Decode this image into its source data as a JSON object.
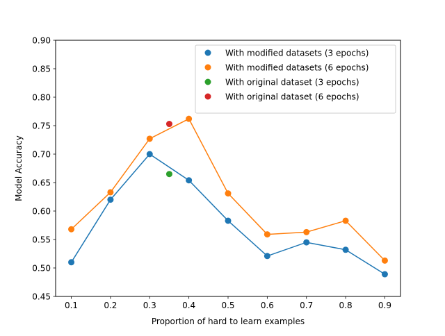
{
  "chart_data": {
    "type": "scatter",
    "title": "",
    "xlabel": "Proportion of hard to learn examples",
    "ylabel": "Model Accuracy",
    "xlim": [
      0.06,
      0.94
    ],
    "ylim": [
      0.45,
      0.9
    ],
    "xticks": [
      0.1,
      0.2,
      0.3,
      0.4,
      0.5,
      0.6,
      0.7,
      0.8,
      0.9
    ],
    "xtick_labels": [
      "0.1",
      "0.2",
      "0.3",
      "0.4",
      "0.5",
      "0.6",
      "0.7",
      "0.8",
      "0.9"
    ],
    "yticks": [
      0.45,
      0.5,
      0.55,
      0.6,
      0.65,
      0.7,
      0.75,
      0.8,
      0.85,
      0.9
    ],
    "ytick_labels": [
      "0.45",
      "0.50",
      "0.55",
      "0.60",
      "0.65",
      "0.70",
      "0.75",
      "0.80",
      "0.85",
      "0.90"
    ],
    "grid": false,
    "legend": "top-right",
    "series": [
      {
        "name": "With modified datasets (3 epochs)",
        "color": "#1f77b4",
        "connected": true,
        "x": [
          0.1,
          0.2,
          0.3,
          0.4,
          0.5,
          0.6,
          0.7,
          0.8,
          0.9
        ],
        "y": [
          0.51,
          0.62,
          0.7,
          0.654,
          0.583,
          0.521,
          0.545,
          0.532,
          0.489
        ]
      },
      {
        "name": "With modified datasets (6 epochs)",
        "color": "#ff7f0e",
        "connected": true,
        "x": [
          0.1,
          0.2,
          0.3,
          0.4,
          0.5,
          0.6,
          0.7,
          0.8,
          0.9
        ],
        "y": [
          0.568,
          0.633,
          0.727,
          0.762,
          0.631,
          0.559,
          0.563,
          0.583,
          0.513
        ]
      },
      {
        "name": "With original dataset (3 epochs)",
        "color": "#2ca02c",
        "connected": false,
        "x": [
          0.35
        ],
        "y": [
          0.665
        ]
      },
      {
        "name": "With original dataset (6 epochs)",
        "color": "#d62728",
        "connected": false,
        "x": [
          0.35
        ],
        "y": [
          0.753
        ]
      }
    ]
  }
}
